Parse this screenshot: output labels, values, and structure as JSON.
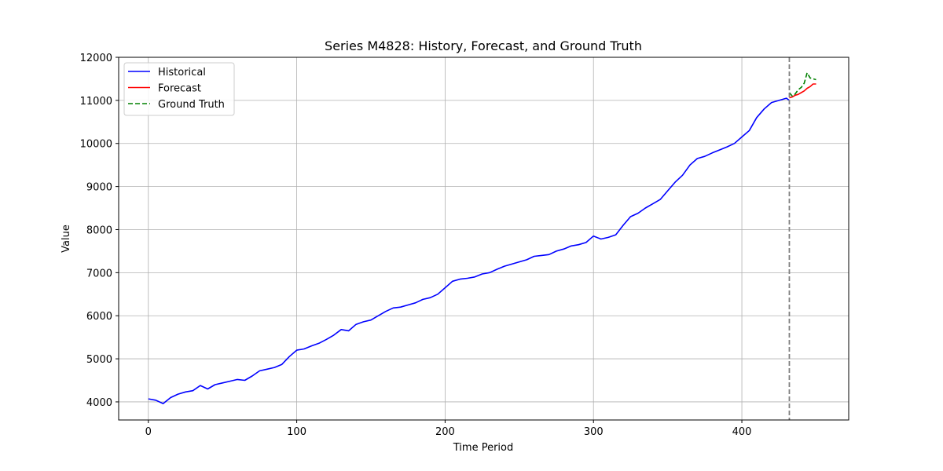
{
  "chart_data": {
    "type": "line",
    "title": "Series M4828: History, Forecast, and Ground Truth",
    "xlabel": "Time Period",
    "ylabel": "Value",
    "xlim": [
      -20,
      472
    ],
    "ylim": [
      3580,
      12000
    ],
    "x_ticks": [
      0,
      100,
      200,
      300,
      400
    ],
    "y_ticks": [
      4000,
      5000,
      6000,
      7000,
      8000,
      9000,
      10000,
      11000,
      12000
    ],
    "grid": true,
    "legend_position": "upper-left",
    "forecast_start": 432,
    "series": [
      {
        "name": "Historical",
        "color": "#0000ff",
        "style": "solid",
        "x": [
          0,
          5,
          10,
          15,
          20,
          25,
          30,
          35,
          40,
          45,
          50,
          55,
          60,
          65,
          70,
          75,
          80,
          85,
          90,
          95,
          100,
          105,
          110,
          115,
          120,
          125,
          130,
          135,
          140,
          145,
          150,
          155,
          160,
          165,
          170,
          175,
          180,
          185,
          190,
          195,
          200,
          205,
          210,
          215,
          220,
          225,
          230,
          235,
          240,
          245,
          250,
          255,
          260,
          265,
          270,
          275,
          280,
          285,
          290,
          295,
          300,
          305,
          310,
          315,
          320,
          325,
          330,
          335,
          340,
          345,
          350,
          355,
          360,
          365,
          370,
          375,
          380,
          385,
          390,
          395,
          400,
          405,
          410,
          415,
          420,
          425,
          430,
          432
        ],
        "values": [
          4070,
          4040,
          3960,
          4100,
          4180,
          4230,
          4260,
          4380,
          4300,
          4400,
          4440,
          4480,
          4520,
          4500,
          4600,
          4720,
          4760,
          4800,
          4870,
          5050,
          5200,
          5230,
          5300,
          5360,
          5450,
          5550,
          5680,
          5650,
          5800,
          5860,
          5900,
          6000,
          6100,
          6180,
          6200,
          6250,
          6300,
          6380,
          6420,
          6500,
          6650,
          6800,
          6850,
          6870,
          6900,
          6970,
          7000,
          7080,
          7150,
          7200,
          7250,
          7300,
          7380,
          7400,
          7420,
          7500,
          7550,
          7620,
          7650,
          7700,
          7850,
          7780,
          7820,
          7880,
          8100,
          8300,
          8380,
          8500,
          8600,
          8700,
          8900,
          9100,
          9260,
          9500,
          9650,
          9700,
          9780,
          9850,
          9920,
          10000,
          10150,
          10300,
          10600,
          10800,
          10950,
          11000,
          11050,
          11000
        ]
      },
      {
        "name": "Forecast",
        "color": "#ff0000",
        "style": "solid",
        "x": [
          432,
          434,
          436,
          438,
          440,
          442,
          444,
          446,
          448,
          450
        ],
        "values": [
          11060,
          11080,
          11120,
          11140,
          11180,
          11220,
          11280,
          11320,
          11380,
          11380
        ]
      },
      {
        "name": "Ground Truth",
        "color": "#008000",
        "style": "dashed",
        "x": [
          432,
          434,
          436,
          438,
          440,
          442,
          444,
          446,
          448,
          450
        ],
        "values": [
          11180,
          11100,
          11150,
          11250,
          11300,
          11400,
          11640,
          11520,
          11500,
          11480
        ]
      }
    ]
  }
}
